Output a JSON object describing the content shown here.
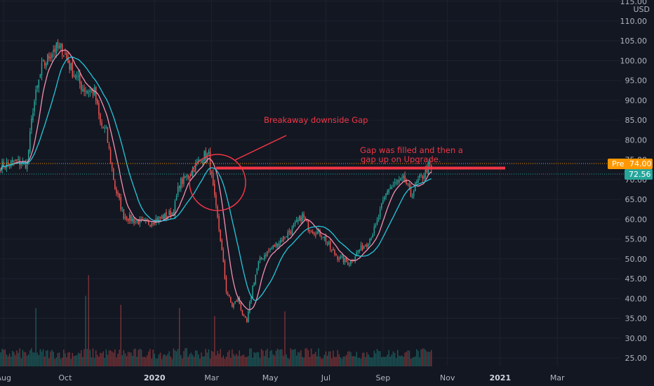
{
  "price_scale": {
    "currency_label": "USD"
  },
  "badges": {
    "pre_label": "Pre",
    "pre_value": "74.00",
    "last_value": "72.56",
    "pre_color": "#ff9800",
    "last_color": "#26a69a"
  },
  "colors": {
    "background": "#131722",
    "up": "#26a69a",
    "down": "#ef5350",
    "ma_fast": "#f48fb1",
    "ma_slow": "#26c6da",
    "annotation": "#f23645"
  },
  "annotations": {
    "gap_label": "Breakaway downside Gap",
    "filled_line1": "Gap was filled and then a",
    "filled_line2": "gap up on Upgrade.",
    "gap_level": 72.9
  },
  "chart_data": {
    "type": "candlestick",
    "title": "",
    "xlabel": "",
    "ylabel": "USD",
    "ylim": [
      22.5,
      115
    ],
    "y_ticks": [
      25,
      30,
      35,
      40,
      45,
      50,
      55,
      60,
      65,
      70,
      75,
      80,
      85,
      90,
      95,
      100,
      105,
      110,
      115
    ],
    "x_ticks": [
      {
        "label": "Aug",
        "index": 2,
        "bold": false
      },
      {
        "label": "Oct",
        "index": 44,
        "bold": false
      },
      {
        "label": "2020",
        "index": 105,
        "bold": true
      },
      {
        "label": "Mar",
        "index": 144,
        "bold": false
      },
      {
        "label": "May",
        "index": 184,
        "bold": false
      },
      {
        "label": "Jul",
        "index": 222,
        "bold": false
      },
      {
        "label": "Sep",
        "index": 261,
        "bold": false
      },
      {
        "label": "Nov",
        "index": 305,
        "bold": false
      },
      {
        "label": "2021",
        "index": 341,
        "bold": true
      },
      {
        "label": "Mar",
        "index": 380,
        "bold": false
      }
    ],
    "total_slots": 424,
    "price_path": [
      [
        0,
        73.5
      ],
      [
        10,
        74.5
      ],
      [
        18,
        74
      ],
      [
        22,
        88
      ],
      [
        28,
        98
      ],
      [
        36,
        103
      ],
      [
        42,
        103
      ],
      [
        48,
        98
      ],
      [
        56,
        93
      ],
      [
        64,
        92
      ],
      [
        68,
        84
      ],
      [
        72,
        82
      ],
      [
        78,
        68
      ],
      [
        84,
        61
      ],
      [
        92,
        59.5
      ],
      [
        100,
        59
      ],
      [
        106,
        60
      ],
      [
        114,
        61
      ],
      [
        118,
        62
      ],
      [
        122,
        69
      ],
      [
        128,
        71
      ],
      [
        134,
        74
      ],
      [
        138,
        76
      ],
      [
        142,
        76
      ],
      [
        146,
        65
      ],
      [
        150,
        55
      ],
      [
        154,
        42
      ],
      [
        158,
        38
      ],
      [
        162,
        40
      ],
      [
        166,
        35
      ],
      [
        168,
        34
      ],
      [
        172,
        43
      ],
      [
        176,
        49
      ],
      [
        180,
        51
      ],
      [
        186,
        53
      ],
      [
        192,
        55
      ],
      [
        200,
        58
      ],
      [
        206,
        61
      ],
      [
        210,
        58
      ],
      [
        214,
        57
      ],
      [
        220,
        56
      ],
      [
        226,
        52
      ],
      [
        232,
        50
      ],
      [
        238,
        49
      ],
      [
        244,
        52
      ],
      [
        250,
        54
      ],
      [
        256,
        58
      ],
      [
        260,
        63
      ],
      [
        264,
        67.5
      ],
      [
        270,
        69
      ],
      [
        276,
        70
      ],
      [
        280,
        66
      ],
      [
        284,
        69
      ],
      [
        288,
        71
      ],
      [
        292,
        73.5
      ],
      [
        294,
        72.56
      ]
    ],
    "ma_fast_period": 10,
    "ma_slow_period": 22,
    "volume_max": 1.0
  }
}
